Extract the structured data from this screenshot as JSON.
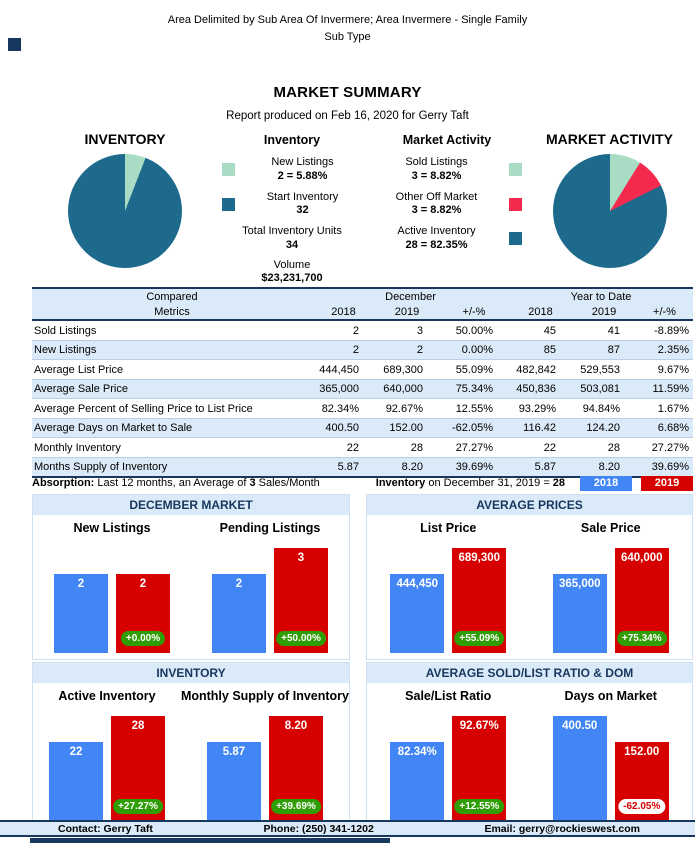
{
  "report": {
    "header_line1": "Area Delimited by Sub Area Of Invermere; Area Invermere - Single Family",
    "header_line2": "Sub Type",
    "title": "MARKET SUMMARY",
    "produced": "Report produced on Feb 16, 2020 for Gerry Taft"
  },
  "chart_data": [
    {
      "type": "pie",
      "name": "inventory",
      "title": "INVENTORY",
      "legend_title": "Inventory",
      "slices": [
        {
          "label": "New Listings",
          "value": 2,
          "pct": 5.88,
          "display": "2 = 5.88%",
          "color": "#a9dcc4"
        },
        {
          "label": "Start Inventory",
          "value": 32,
          "pct": 94.12,
          "display": "32",
          "color": "#1d6a8c"
        }
      ],
      "extras": [
        {
          "label": "Total Inventory Units",
          "display": "34"
        },
        {
          "label": "Volume",
          "display": "$23,231,700"
        }
      ]
    },
    {
      "type": "pie",
      "name": "market-activity",
      "title": "MARKET ACTIVITY",
      "legend_title": "Market Activity",
      "slices": [
        {
          "label": "Sold Listings",
          "value": 3,
          "pct": 8.82,
          "display": "3 = 8.82%",
          "color": "#a9dcc4"
        },
        {
          "label": "Other Off Market",
          "value": 3,
          "pct": 8.82,
          "display": "3 = 8.82%",
          "color": "#f4294e"
        },
        {
          "label": "Active Inventory",
          "value": 28,
          "pct": 82.35,
          "display": "28 = 82.35%",
          "color": "#1d6a8c"
        }
      ]
    },
    {
      "type": "bar",
      "title": "DECEMBER MARKET",
      "charts": [
        {
          "title": "New Listings",
          "bars": [
            {
              "series": "2018",
              "value": 2,
              "label": "2"
            },
            {
              "series": "2019",
              "value": 2,
              "label": "2"
            }
          ],
          "change": "+0.00%",
          "positive": true
        },
        {
          "title": "Pending Listings",
          "bars": [
            {
              "series": "2018",
              "value": 2,
              "label": "2"
            },
            {
              "series": "2019",
              "value": 3,
              "label": "3"
            }
          ],
          "change": "+50.00%",
          "positive": true
        }
      ]
    },
    {
      "type": "bar",
      "title": "AVERAGE PRICES",
      "charts": [
        {
          "title": "List Price",
          "bars": [
            {
              "series": "2018",
              "value": 444450,
              "label": "444,450"
            },
            {
              "series": "2019",
              "value": 689300,
              "label": "689,300"
            }
          ],
          "change": "+55.09%",
          "positive": true
        },
        {
          "title": "Sale Price",
          "bars": [
            {
              "series": "2018",
              "value": 365000,
              "label": "365,000"
            },
            {
              "series": "2019",
              "value": 640000,
              "label": "640,000"
            }
          ],
          "change": "+75.34%",
          "positive": true
        }
      ]
    },
    {
      "type": "bar",
      "title": "INVENTORY",
      "charts": [
        {
          "title": "Active Inventory",
          "bars": [
            {
              "series": "2018",
              "value": 22,
              "label": "22"
            },
            {
              "series": "2019",
              "value": 28,
              "label": "28"
            }
          ],
          "change": "+27.27%",
          "positive": true
        },
        {
          "title": "Monthly Supply of Inventory",
          "bars": [
            {
              "series": "2018",
              "value": 5.87,
              "label": "5.87"
            },
            {
              "series": "2019",
              "value": 8.2,
              "label": "8.20"
            }
          ],
          "change": "+39.69%",
          "positive": true
        }
      ]
    },
    {
      "type": "bar",
      "title": "AVERAGE SOLD/LIST RATIO & DOM",
      "charts": [
        {
          "title": "Sale/List Ratio",
          "bars": [
            {
              "series": "2018",
              "value": 82.34,
              "label": "82.34%"
            },
            {
              "series": "2019",
              "value": 92.67,
              "label": "92.67%"
            }
          ],
          "change": "+12.55%",
          "positive": true
        },
        {
          "title": "Days on Market",
          "bars": [
            {
              "series": "2018",
              "value": 400.5,
              "label": "400.50"
            },
            {
              "series": "2019",
              "value": 152.0,
              "label": "152.00"
            }
          ],
          "change": "-62.05%",
          "positive": false
        }
      ]
    }
  ],
  "table": {
    "group_headers": [
      "Compared",
      "December",
      "Year to Date"
    ],
    "column_headers": [
      "Metrics",
      "2018",
      "2019",
      "+/-%",
      "2018",
      "2019",
      "+/-%"
    ],
    "rows": [
      [
        "Sold Listings",
        "2",
        "3",
        "50.00%",
        "45",
        "41",
        "-8.89%"
      ],
      [
        "New Listings",
        "2",
        "2",
        "0.00%",
        "85",
        "87",
        "2.35%"
      ],
      [
        "Average List Price",
        "444,450",
        "689,300",
        "55.09%",
        "482,842",
        "529,553",
        "9.67%"
      ],
      [
        "Average Sale Price",
        "365,000",
        "640,000",
        "75.34%",
        "450,836",
        "503,081",
        "11.59%"
      ],
      [
        "Average Percent of Selling Price to List Price",
        "82.34%",
        "92.67%",
        "12.55%",
        "93.29%",
        "94.84%",
        "1.67%"
      ],
      [
        "Average Days on Market to Sale",
        "400.50",
        "152.00",
        "-62.05%",
        "116.42",
        "124.20",
        "6.68%"
      ],
      [
        "Monthly Inventory",
        "22",
        "28",
        "27.27%",
        "22",
        "28",
        "27.27%"
      ],
      [
        "Months Supply of Inventory",
        "5.87",
        "8.20",
        "39.69%",
        "5.87",
        "8.20",
        "39.69%"
      ]
    ]
  },
  "absorption": {
    "label": "Absorption:",
    "text": " Last 12 months, an Average of ",
    "value": "3",
    "suffix": " Sales/Month"
  },
  "inventory_note": {
    "label": "Inventory",
    "text": " on December 31, 2019 = ",
    "value": "28"
  },
  "series_legend": [
    {
      "label": "2018",
      "color": "#4285f4"
    },
    {
      "label": "2019",
      "color": "#d60000"
    }
  ],
  "footer": {
    "contact": "Contact: Gerry Taft",
    "phone": "Phone: (250) 341-1202",
    "email": "Email: gerry@rockieswest.com"
  },
  "colors": {
    "navy": "#17375e",
    "panel_blue": "#dbeaf8",
    "bar_2018": "#4285f4",
    "bar_2019": "#d60000",
    "positive_pill_green": "#2f9e06",
    "pie_teal": "#1d6a8c",
    "pie_light_green": "#a9dcc4",
    "pie_red": "#f4294e"
  }
}
